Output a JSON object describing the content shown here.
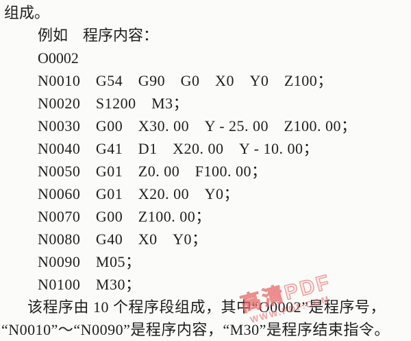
{
  "doc": {
    "intro": "组成。",
    "example_heading": "例如　程序内容：",
    "program_number": "O0002",
    "code_lines": [
      "N0010　G54　G90　G0　X0　Y0　Z100；",
      "N0020　S1200　M3；",
      "N0030　G00　X30. 00　Y - 25. 00　Z100. 00；",
      "N0040　G41　D1　X20. 00　Y - 10. 00；",
      "N0050　G01　Z0. 00　F100. 00；",
      "N0060　G01　X20. 00　Y0；",
      "N0070　G00　Z100. 00；",
      "N0080　G40　X0　Y0；",
      "N0090　M05；",
      "N0100　M30；"
    ],
    "closing_paragraph": {
      "line1": "该程序由 10 个程序段组成，其中“O0002”是程序号，",
      "line2": "“N0010”～“N0090”是程序内容，“M30”是程序结束指令。"
    },
    "watermark": {
      "line1": "高清PDF",
      "line2": "WWW.PDF.COM",
      "color": "#e45a5a"
    }
  }
}
